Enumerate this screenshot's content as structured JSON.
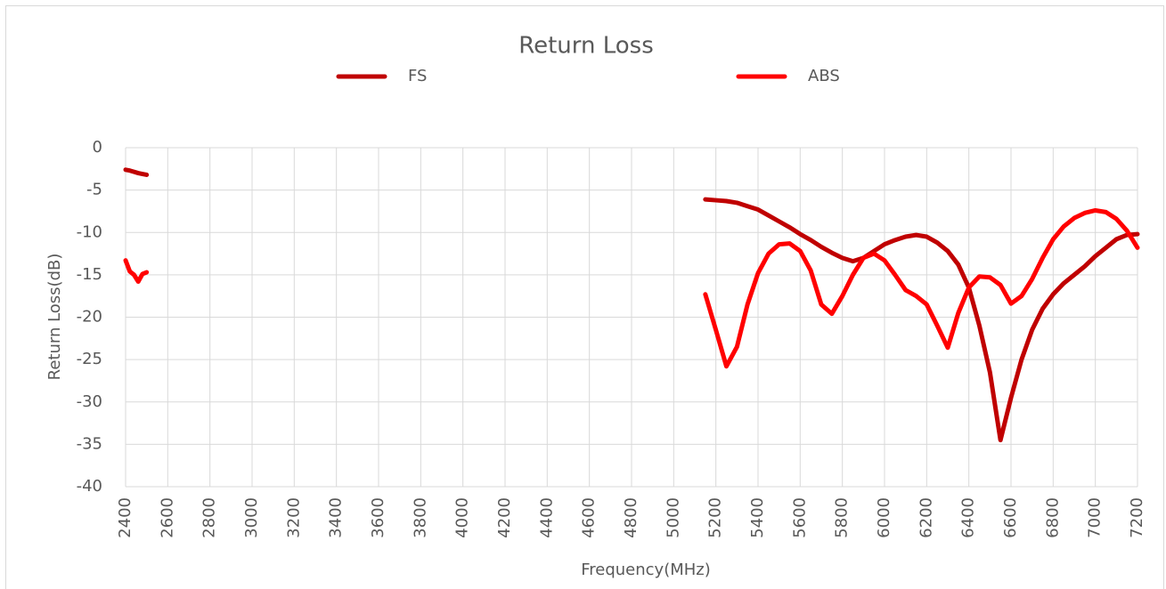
{
  "chart_data": {
    "type": "line",
    "title": "Return Loss",
    "x_label": "Frequency(MHz)",
    "y_label": "Return Loss(dB)",
    "x": [
      2400,
      2420,
      2440,
      2460,
      2480,
      2500,
      3800,
      5150,
      5200,
      5250,
      5300,
      5350,
      5400,
      5450,
      5500,
      5550,
      5600,
      5650,
      5700,
      5750,
      5800,
      5850,
      5900,
      5950,
      6000,
      6050,
      6100,
      6150,
      6200,
      6250,
      6300,
      6350,
      6400,
      6450,
      6500,
      6550,
      6600,
      6650,
      6700,
      6750,
      6800,
      6850,
      6900,
      6950,
      7000,
      7050,
      7100,
      7150,
      7200
    ],
    "series": [
      {
        "name": "FS",
        "color": "#c00000",
        "values": [
          -2.6,
          -2.7,
          -2.85,
          -3.0,
          -3.1,
          -3.2,
          null,
          -6.1,
          -6.2,
          -6.3,
          -6.5,
          -6.9,
          -7.3,
          -8.0,
          -8.7,
          -9.4,
          -10.2,
          -10.9,
          -11.7,
          -12.4,
          -13.0,
          -13.4,
          -13.0,
          -12.2,
          -11.4,
          -10.9,
          -10.5,
          -10.3,
          -10.5,
          -11.2,
          -12.2,
          -13.8,
          -16.5,
          -21,
          -26.5,
          -34.5,
          -29.5,
          -25,
          -21.5,
          -19,
          -17.3,
          -16,
          -15,
          -14,
          -12.8,
          -11.8,
          -10.8,
          -10.3,
          -10.2
        ]
      },
      {
        "name": "ABS",
        "color": "#ff0000",
        "values": [
          -13.3,
          -14.6,
          -15.0,
          -15.8,
          -14.9,
          -14.7,
          null,
          -17.3,
          -21.5,
          -25.8,
          -23.5,
          -18.5,
          -14.8,
          -12.5,
          -11.4,
          -11.3,
          -12.2,
          -14.5,
          -18.5,
          -19.6,
          -17.5,
          -15,
          -13,
          -12.5,
          -13.3,
          -15,
          -16.8,
          -17.5,
          -18.5,
          -21,
          -23.6,
          -19.5,
          -16.5,
          -15.2,
          -15.3,
          -16.2,
          -18.4,
          -17.5,
          -15.5,
          -13,
          -10.8,
          -9.3,
          -8.3,
          -7.7,
          -7.4,
          -7.6,
          -8.4,
          -9.8,
          -11.8
        ]
      }
    ],
    "xlim": [
      2400,
      7200
    ],
    "xticks": [
      2400,
      2600,
      2800,
      3000,
      3200,
      3400,
      3600,
      3800,
      4000,
      4200,
      4400,
      4600,
      4800,
      5000,
      5200,
      5400,
      5600,
      5800,
      6000,
      6200,
      6400,
      6600,
      6800,
      7000,
      7200
    ],
    "ylim": [
      -40,
      0
    ],
    "yticks": [
      0,
      -5,
      -10,
      -15,
      -20,
      -25,
      -30,
      -35,
      -40
    ],
    "grid": true,
    "legend": "top"
  }
}
